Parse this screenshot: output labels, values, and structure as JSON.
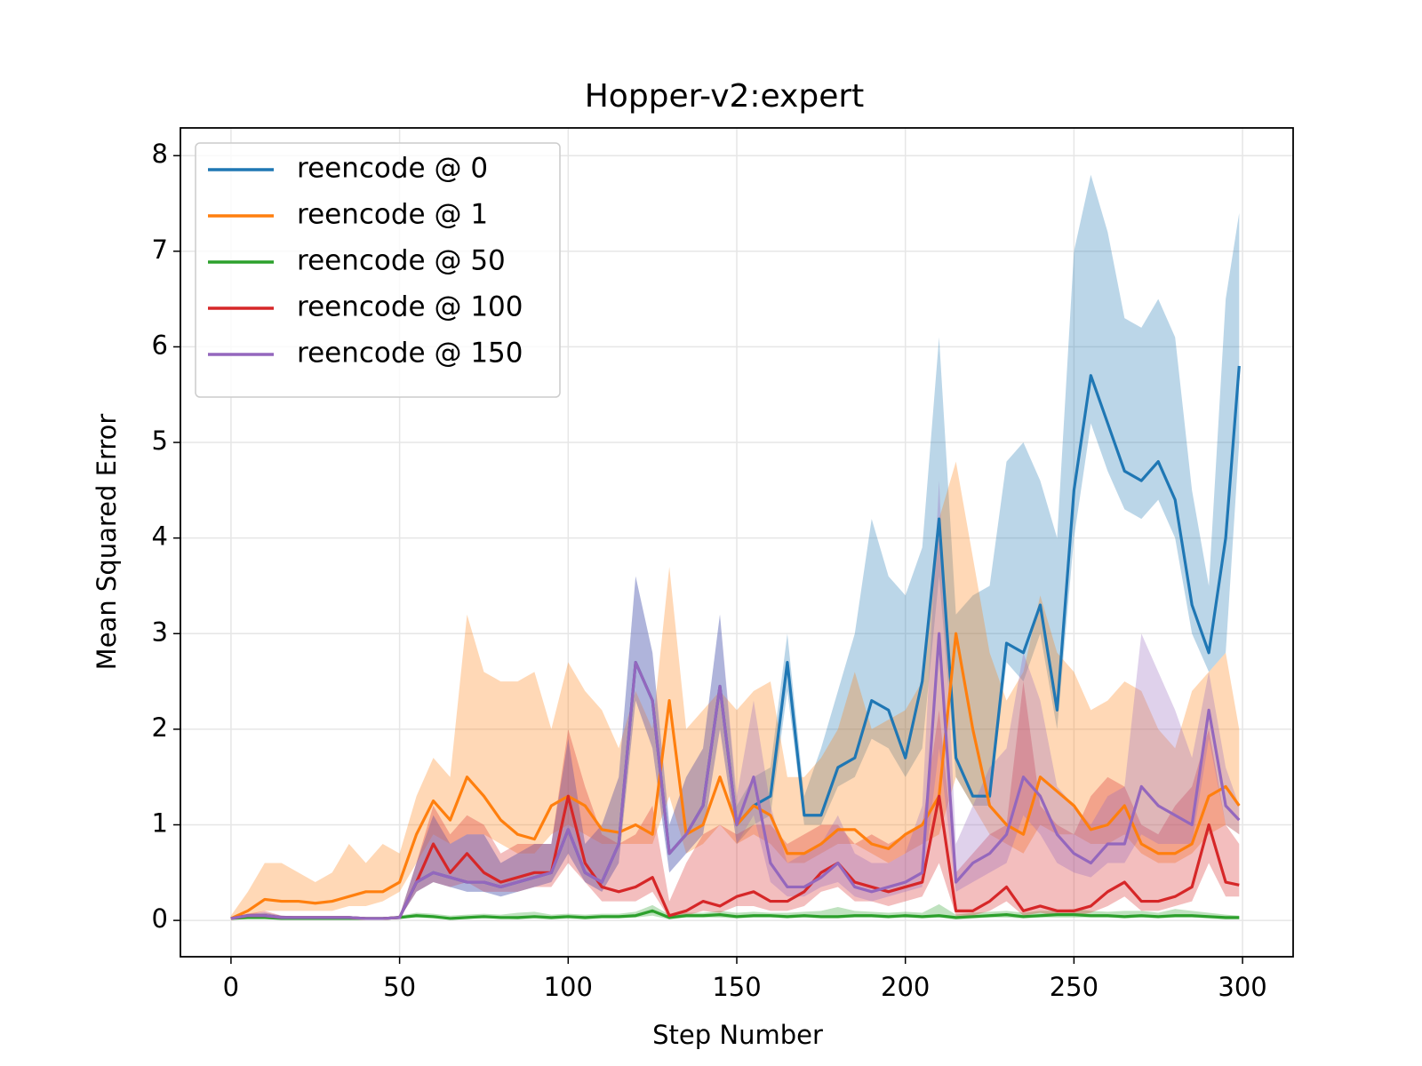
{
  "chart_data": {
    "type": "line",
    "title": "Hopper-v2:expert",
    "xlabel": "Step Number",
    "ylabel": "Mean Squared Error",
    "xlim": [
      -15,
      315
    ],
    "ylim": [
      -0.38,
      8.29
    ],
    "xticks": [
      0,
      50,
      100,
      150,
      200,
      250,
      300
    ],
    "yticks": [
      0,
      1,
      2,
      3,
      4,
      5,
      6,
      7,
      8
    ],
    "grid": true,
    "legend": "upper left",
    "x": [
      0,
      5,
      10,
      15,
      20,
      25,
      30,
      35,
      40,
      45,
      50,
      55,
      60,
      65,
      70,
      75,
      80,
      85,
      90,
      95,
      100,
      105,
      110,
      115,
      120,
      125,
      130,
      135,
      140,
      145,
      150,
      155,
      160,
      165,
      170,
      175,
      180,
      185,
      190,
      195,
      200,
      205,
      210,
      215,
      220,
      225,
      230,
      235,
      240,
      245,
      250,
      255,
      260,
      265,
      270,
      275,
      280,
      285,
      290,
      295,
      299
    ],
    "series": [
      {
        "name": "reencode @ 0",
        "color": "#1f77b4",
        "values": [
          0.02,
          0.05,
          0.05,
          0.03,
          0.03,
          0.03,
          0.03,
          0.03,
          0.02,
          0.02,
          0.03,
          0.4,
          0.5,
          0.45,
          0.4,
          0.4,
          0.35,
          0.4,
          0.45,
          0.5,
          0.95,
          0.5,
          0.4,
          0.8,
          2.7,
          2.3,
          0.7,
          0.9,
          1.2,
          2.45,
          1.0,
          1.2,
          1.3,
          2.7,
          1.1,
          1.1,
          1.6,
          1.7,
          2.3,
          2.2,
          1.7,
          2.5,
          4.2,
          1.7,
          1.3,
          1.3,
          2.9,
          2.8,
          3.3,
          2.2,
          4.5,
          5.7,
          5.2,
          4.7,
          4.6,
          4.8,
          4.4,
          3.3,
          2.8,
          4.0,
          5.8
        ],
        "upper": [
          0.03,
          0.07,
          0.08,
          0.05,
          0.04,
          0.04,
          0.04,
          0.04,
          0.03,
          0.03,
          0.05,
          0.6,
          1.1,
          0.8,
          0.9,
          0.9,
          0.6,
          0.7,
          0.8,
          0.8,
          1.9,
          0.8,
          1.0,
          1.5,
          3.6,
          2.8,
          1.0,
          1.5,
          1.8,
          3.2,
          1.2,
          1.5,
          1.6,
          3.0,
          1.3,
          1.8,
          2.4,
          3.0,
          4.2,
          3.6,
          3.4,
          3.9,
          6.1,
          3.2,
          3.4,
          3.5,
          4.8,
          5.0,
          4.6,
          4.0,
          7.0,
          7.8,
          7.2,
          6.3,
          6.2,
          6.5,
          6.1,
          4.5,
          3.5,
          6.5,
          7.4
        ],
        "lower": [
          0.01,
          0.03,
          0.03,
          0.02,
          0.02,
          0.02,
          0.02,
          0.02,
          0.01,
          0.01,
          0.02,
          0.3,
          0.4,
          0.35,
          0.3,
          0.3,
          0.25,
          0.3,
          0.35,
          0.4,
          0.7,
          0.4,
          0.3,
          0.6,
          2.3,
          1.8,
          0.5,
          0.7,
          0.9,
          2.0,
          0.8,
          1.0,
          1.1,
          2.4,
          1.0,
          1.0,
          1.4,
          1.5,
          1.9,
          1.8,
          1.5,
          1.8,
          3.6,
          1.5,
          1.2,
          1.2,
          2.7,
          2.5,
          3.0,
          2.0,
          4.0,
          5.2,
          4.7,
          4.3,
          4.2,
          4.4,
          4.0,
          3.0,
          2.6,
          2.8,
          5.0
        ]
      },
      {
        "name": "reencode @ 1",
        "color": "#ff7f0e",
        "values": [
          0.02,
          0.1,
          0.22,
          0.2,
          0.2,
          0.18,
          0.2,
          0.25,
          0.3,
          0.3,
          0.4,
          0.9,
          1.25,
          1.05,
          1.5,
          1.3,
          1.05,
          0.9,
          0.85,
          1.2,
          1.3,
          1.2,
          0.95,
          0.92,
          1.0,
          0.9,
          2.3,
          0.9,
          1.0,
          1.5,
          1.0,
          1.2,
          1.1,
          0.7,
          0.7,
          0.8,
          0.95,
          0.95,
          0.8,
          0.75,
          0.9,
          1.0,
          1.3,
          3.0,
          2.0,
          1.2,
          1.0,
          0.9,
          1.5,
          1.35,
          1.2,
          0.95,
          1.0,
          1.2,
          0.8,
          0.7,
          0.7,
          0.8,
          1.3,
          1.4,
          1.2
        ],
        "upper": [
          0.05,
          0.3,
          0.6,
          0.6,
          0.5,
          0.4,
          0.5,
          0.8,
          0.6,
          0.8,
          0.7,
          1.3,
          1.7,
          1.5,
          3.2,
          2.6,
          2.5,
          2.5,
          2.6,
          2.0,
          2.7,
          2.4,
          2.2,
          1.8,
          2.4,
          2.0,
          3.7,
          2.0,
          2.2,
          2.4,
          2.2,
          2.4,
          2.5,
          1.5,
          1.5,
          1.7,
          2.0,
          2.6,
          2.0,
          2.1,
          2.2,
          2.5,
          4.2,
          4.8,
          3.8,
          2.8,
          2.3,
          2.6,
          3.4,
          2.8,
          2.6,
          2.2,
          2.3,
          2.5,
          2.4,
          2.0,
          1.8,
          2.4,
          2.6,
          2.8,
          2.0
        ],
        "lower": [
          0.0,
          0.05,
          0.1,
          0.1,
          0.1,
          0.1,
          0.1,
          0.15,
          0.15,
          0.2,
          0.3,
          0.6,
          0.9,
          0.8,
          0.9,
          0.9,
          0.8,
          0.7,
          0.7,
          0.9,
          1.0,
          0.9,
          0.8,
          0.8,
          0.8,
          0.8,
          1.3,
          0.7,
          0.8,
          1.0,
          0.8,
          0.9,
          0.8,
          0.6,
          0.6,
          0.7,
          0.8,
          0.8,
          0.7,
          0.6,
          0.7,
          0.8,
          0.9,
          1.5,
          1.2,
          0.9,
          0.8,
          0.7,
          1.0,
          0.9,
          0.9,
          0.8,
          0.8,
          0.9,
          0.7,
          0.6,
          0.6,
          0.7,
          0.9,
          1.0,
          0.9
        ]
      },
      {
        "name": "reencode @ 50",
        "color": "#2ca02c",
        "values": [
          0.02,
          0.03,
          0.03,
          0.02,
          0.02,
          0.02,
          0.02,
          0.02,
          0.02,
          0.02,
          0.03,
          0.05,
          0.04,
          0.02,
          0.03,
          0.04,
          0.03,
          0.03,
          0.04,
          0.03,
          0.04,
          0.03,
          0.04,
          0.04,
          0.05,
          0.1,
          0.03,
          0.05,
          0.05,
          0.06,
          0.04,
          0.05,
          0.05,
          0.04,
          0.05,
          0.04,
          0.04,
          0.05,
          0.05,
          0.04,
          0.05,
          0.04,
          0.05,
          0.03,
          0.04,
          0.05,
          0.06,
          0.04,
          0.05,
          0.06,
          0.06,
          0.05,
          0.05,
          0.04,
          0.05,
          0.04,
          0.05,
          0.05,
          0.04,
          0.03,
          0.03
        ],
        "upper": [
          0.03,
          0.04,
          0.04,
          0.03,
          0.03,
          0.03,
          0.03,
          0.03,
          0.03,
          0.03,
          0.05,
          0.08,
          0.07,
          0.05,
          0.06,
          0.07,
          0.06,
          0.08,
          0.09,
          0.06,
          0.07,
          0.06,
          0.07,
          0.07,
          0.09,
          0.16,
          0.06,
          0.08,
          0.08,
          0.1,
          0.08,
          0.09,
          0.08,
          0.08,
          0.09,
          0.1,
          0.14,
          0.1,
          0.09,
          0.08,
          0.09,
          0.08,
          0.17,
          0.06,
          0.08,
          0.09,
          0.1,
          0.08,
          0.1,
          0.1,
          0.12,
          0.1,
          0.09,
          0.1,
          0.1,
          0.08,
          0.12,
          0.1,
          0.08,
          0.06,
          0.05
        ],
        "lower": [
          0.01,
          0.02,
          0.02,
          0.01,
          0.01,
          0.01,
          0.01,
          0.01,
          0.01,
          0.01,
          0.02,
          0.03,
          0.02,
          0.01,
          0.02,
          0.02,
          0.02,
          0.01,
          0.02,
          0.01,
          0.02,
          0.01,
          0.02,
          0.02,
          0.03,
          0.05,
          0.01,
          0.03,
          0.03,
          0.03,
          0.02,
          0.03,
          0.03,
          0.02,
          0.03,
          0.02,
          0.02,
          0.03,
          0.03,
          0.02,
          0.03,
          0.02,
          0.03,
          0.01,
          0.02,
          0.03,
          0.03,
          0.02,
          0.03,
          0.03,
          0.03,
          0.03,
          0.03,
          0.02,
          0.03,
          0.02,
          0.03,
          0.03,
          0.02,
          0.01,
          0.01
        ]
      },
      {
        "name": "reencode @ 100",
        "color": "#d62728",
        "values": [
          0.02,
          0.05,
          0.05,
          0.03,
          0.03,
          0.03,
          0.03,
          0.03,
          0.02,
          0.02,
          0.03,
          0.4,
          0.8,
          0.5,
          0.7,
          0.5,
          0.4,
          0.45,
          0.5,
          0.5,
          1.3,
          0.6,
          0.35,
          0.3,
          0.35,
          0.45,
          0.05,
          0.1,
          0.2,
          0.15,
          0.25,
          0.3,
          0.2,
          0.2,
          0.3,
          0.5,
          0.6,
          0.4,
          0.35,
          0.3,
          0.35,
          0.4,
          1.3,
          0.1,
          0.1,
          0.2,
          0.35,
          0.1,
          0.15,
          0.1,
          0.1,
          0.15,
          0.3,
          0.4,
          0.2,
          0.2,
          0.25,
          0.35,
          1.0,
          0.4,
          0.37
        ],
        "upper": [
          0.03,
          0.07,
          0.1,
          0.05,
          0.04,
          0.04,
          0.04,
          0.04,
          0.03,
          0.03,
          0.05,
          0.6,
          1.2,
          0.9,
          1.1,
          1.0,
          0.7,
          0.8,
          0.8,
          0.8,
          2.0,
          1.4,
          0.9,
          0.8,
          0.9,
          1.2,
          0.2,
          0.6,
          0.9,
          1.0,
          0.9,
          1.0,
          1.0,
          0.8,
          0.9,
          1.0,
          1.0,
          0.8,
          0.9,
          0.8,
          0.9,
          1.0,
          2.2,
          0.5,
          0.7,
          0.9,
          1.0,
          2.5,
          1.2,
          1.0,
          0.9,
          1.3,
          1.5,
          1.4,
          1.0,
          0.9,
          1.2,
          1.4,
          2.0,
          1.0,
          0.8
        ],
        "lower": [
          0.01,
          0.03,
          0.02,
          0.02,
          0.02,
          0.02,
          0.02,
          0.02,
          0.01,
          0.01,
          0.02,
          0.3,
          0.4,
          0.35,
          0.4,
          0.3,
          0.3,
          0.3,
          0.35,
          0.35,
          0.6,
          0.4,
          0.2,
          0.2,
          0.2,
          0.3,
          0.02,
          0.05,
          0.1,
          0.08,
          0.15,
          0.15,
          0.1,
          0.1,
          0.15,
          0.3,
          0.35,
          0.2,
          0.2,
          0.15,
          0.2,
          0.25,
          0.6,
          0.05,
          0.05,
          0.1,
          0.2,
          0.05,
          0.08,
          0.05,
          0.05,
          0.08,
          0.15,
          0.25,
          0.1,
          0.1,
          0.15,
          0.2,
          0.6,
          0.25,
          0.25
        ]
      },
      {
        "name": "reencode @ 150",
        "color": "#9467bd",
        "values": [
          0.02,
          0.05,
          0.05,
          0.03,
          0.03,
          0.03,
          0.03,
          0.03,
          0.02,
          0.02,
          0.03,
          0.4,
          0.5,
          0.45,
          0.4,
          0.4,
          0.35,
          0.4,
          0.45,
          0.5,
          0.95,
          0.5,
          0.4,
          0.8,
          2.7,
          2.3,
          0.7,
          0.9,
          1.2,
          2.45,
          1.0,
          1.5,
          0.6,
          0.35,
          0.35,
          0.45,
          0.6,
          0.35,
          0.3,
          0.35,
          0.4,
          0.5,
          3.0,
          0.4,
          0.6,
          0.7,
          0.9,
          1.5,
          1.3,
          0.9,
          0.7,
          0.6,
          0.8,
          0.8,
          1.4,
          1.2,
          1.1,
          1.0,
          2.2,
          1.2,
          1.05
        ],
        "upper": [
          0.03,
          0.07,
          0.08,
          0.05,
          0.04,
          0.04,
          0.04,
          0.04,
          0.03,
          0.03,
          0.05,
          0.6,
          1.1,
          0.8,
          0.9,
          0.9,
          0.6,
          0.7,
          0.8,
          0.8,
          1.9,
          0.8,
          1.0,
          1.5,
          3.6,
          2.8,
          1.0,
          1.5,
          1.8,
          3.2,
          1.3,
          2.3,
          1.2,
          0.6,
          0.7,
          0.8,
          1.1,
          0.7,
          0.6,
          0.6,
          0.7,
          1.2,
          4.6,
          0.8,
          1.2,
          1.6,
          1.8,
          2.8,
          2.3,
          1.4,
          1.2,
          1.0,
          1.3,
          1.4,
          3.0,
          2.6,
          2.2,
          1.7,
          2.6,
          1.6,
          1.2
        ],
        "lower": [
          0.01,
          0.03,
          0.03,
          0.02,
          0.02,
          0.02,
          0.02,
          0.02,
          0.01,
          0.01,
          0.02,
          0.3,
          0.4,
          0.35,
          0.3,
          0.3,
          0.25,
          0.3,
          0.35,
          0.4,
          0.7,
          0.4,
          0.3,
          0.6,
          2.3,
          1.8,
          0.5,
          0.7,
          0.9,
          2.0,
          0.8,
          1.1,
          0.4,
          0.25,
          0.25,
          0.35,
          0.4,
          0.25,
          0.2,
          0.25,
          0.3,
          0.35,
          1.8,
          0.3,
          0.4,
          0.5,
          0.6,
          1.1,
          0.9,
          0.6,
          0.5,
          0.45,
          0.6,
          0.6,
          0.9,
          0.8,
          0.8,
          0.8,
          1.9,
          1.0,
          0.9
        ]
      }
    ]
  }
}
